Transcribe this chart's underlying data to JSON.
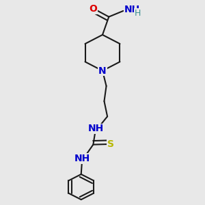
{
  "background_color": "#e8e8e8",
  "fig_size": [
    3.0,
    3.0
  ],
  "dpi": 100,
  "bond_color": "#1a1a1a",
  "bond_width": 1.5,
  "atoms": {
    "O": {
      "color": "#dd0000",
      "fontsize": 10,
      "fontweight": "bold"
    },
    "N": {
      "color": "#0000cc",
      "fontsize": 10,
      "fontweight": "bold"
    },
    "S": {
      "color": "#b8b800",
      "fontsize": 10,
      "fontweight": "bold"
    },
    "H": {
      "color": "#3a9090",
      "fontsize": 9,
      "fontweight": "normal"
    },
    "NH2_N": {
      "color": "#0000cc",
      "fontsize": 10,
      "fontweight": "bold"
    },
    "NH2_H": {
      "color": "#3a9090",
      "fontsize": 9,
      "fontweight": "normal"
    }
  },
  "xlim": [
    0.15,
    0.85
  ],
  "ylim": [
    0.02,
    0.98
  ]
}
